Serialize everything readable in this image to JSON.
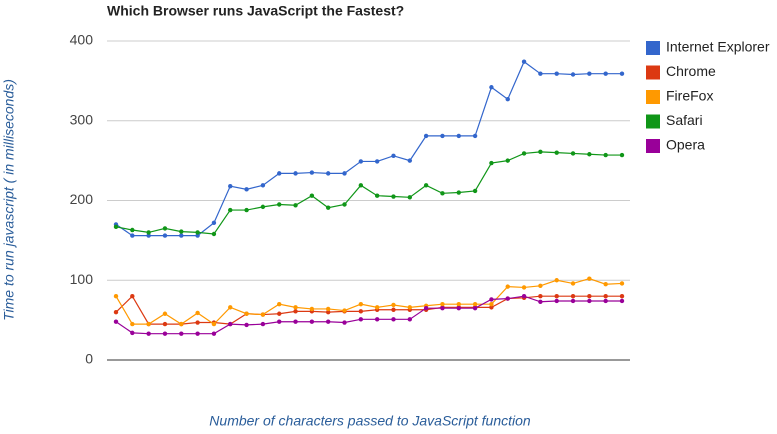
{
  "chart_data": {
    "type": "line",
    "title": "Which Browser runs JavaScript the Fastest?",
    "x_label": "Number of characters passed to JavaScript function",
    "y_label": "Time to run javascript ( in milliseconds)",
    "categories": [
      null,
      null,
      null,
      null,
      null,
      null,
      null,
      null,
      null,
      null,
      null,
      null,
      null,
      null,
      null,
      null,
      null,
      null,
      null,
      null,
      null,
      null,
      null,
      null,
      null,
      null,
      null,
      null,
      null,
      null,
      null,
      null
    ],
    "ylim": [
      0,
      400
    ],
    "yticks": [
      0,
      100,
      200,
      300,
      400
    ],
    "grid": true,
    "legend": "right",
    "series": [
      {
        "name": "Internet Explorer",
        "color": "#3366cc",
        "values": [
          170,
          156,
          156,
          156,
          156,
          156,
          172,
          218,
          214,
          219,
          234,
          234,
          235,
          234,
          234,
          249,
          249,
          256,
          250,
          281,
          281,
          281,
          281,
          342,
          327,
          374,
          359,
          359,
          358,
          359,
          359,
          359
        ]
      },
      {
        "name": "Chrome",
        "color": "#dc3912",
        "values": [
          60,
          80,
          45,
          45,
          45,
          47,
          47,
          45,
          58,
          57,
          58,
          61,
          61,
          60,
          61,
          61,
          63,
          63,
          63,
          63,
          66,
          66,
          66,
          66,
          77,
          78,
          80,
          80,
          80,
          80,
          80,
          80
        ]
      },
      {
        "name": "FireFox",
        "color": "#ff9900",
        "values": [
          80,
          45,
          45,
          58,
          45,
          59,
          45,
          66,
          58,
          57,
          70,
          66,
          64,
          64,
          62,
          70,
          66,
          69,
          66,
          68,
          70,
          70,
          70,
          70,
          92,
          91,
          93,
          100,
          96,
          102,
          95,
          96
        ]
      },
      {
        "name": "Safari",
        "color": "#109618",
        "values": [
          167,
          163,
          160,
          165,
          161,
          160,
          158,
          188,
          188,
          192,
          195,
          194,
          206,
          191,
          195,
          219,
          206,
          205,
          204,
          219,
          209,
          210,
          212,
          247,
          250,
          259,
          261,
          260,
          259,
          258,
          257,
          257
        ]
      },
      {
        "name": "Opera",
        "color": "#990099",
        "values": [
          48,
          34,
          33,
          33,
          33,
          33,
          33,
          45,
          44,
          45,
          48,
          48,
          48,
          48,
          47,
          51,
          51,
          51,
          51,
          65,
          65,
          65,
          65,
          76,
          77,
          80,
          73,
          74,
          74,
          74,
          74,
          74
        ]
      }
    ]
  }
}
